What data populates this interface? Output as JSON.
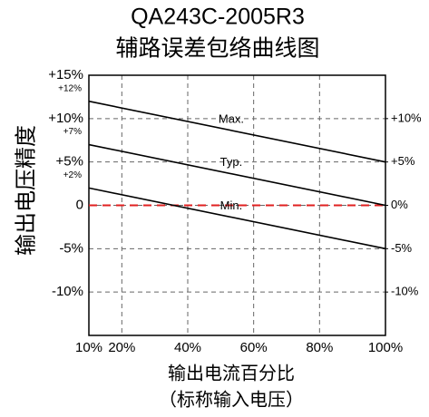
{
  "chart_data": {
    "type": "line",
    "title": "QA243C-2005R3",
    "subtitle": "辅路误差包络曲线图",
    "y_label": "输出电压精度",
    "x_label": [
      "输出电流百分比",
      "（标称输入电压）"
    ],
    "x": [
      10,
      100
    ],
    "xlim": [
      10,
      100
    ],
    "xticks": [
      {
        "value": 10,
        "label": "10%"
      },
      {
        "value": 20,
        "label": "20%"
      },
      {
        "value": 40,
        "label": "40%"
      },
      {
        "value": 60,
        "label": "60%"
      },
      {
        "value": 80,
        "label": "80%"
      },
      {
        "value": 100,
        "label": "100%"
      }
    ],
    "ylim": [
      -15,
      15
    ],
    "yticks": [
      {
        "value": -10,
        "label": "-10%"
      },
      {
        "value": -5,
        "label": "-5%"
      },
      0,
      {
        "value": 5,
        "label": "+5%"
      },
      {
        "value": 10,
        "label": "+10%"
      },
      {
        "value": 15,
        "label": "+15%"
      }
    ],
    "y2lim": [
      -15,
      15
    ],
    "y2ticks": [
      {
        "value": -10,
        "label": "-10%"
      },
      {
        "value": -5,
        "label": "-5%"
      },
      {
        "value": 0,
        "label": "0%"
      },
      {
        "value": 5,
        "label": "+5%"
      },
      {
        "value": 10,
        "label": "+10%"
      }
    ],
    "grid": true,
    "series": [
      {
        "name": "Max.",
        "color": "#000000",
        "values": [
          12,
          5
        ],
        "value_labels": [
          "+12%",
          null
        ]
      },
      {
        "name": "Typ.",
        "color": "#000000",
        "values": [
          7,
          0
        ],
        "value_labels": [
          "+7%",
          null
        ]
      },
      {
        "name": "Min.",
        "color": "#000000",
        "values": [
          2,
          -5
        ],
        "value_labels": [
          "+2%",
          null
        ]
      }
    ],
    "reference_lines": [
      {
        "value": 0,
        "color": "#e02020"
      }
    ]
  }
}
